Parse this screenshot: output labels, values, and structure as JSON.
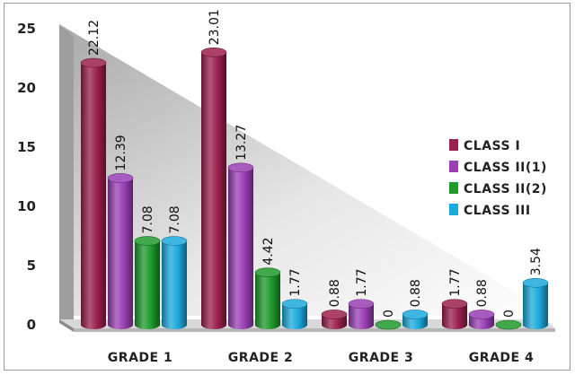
{
  "chart_data": {
    "type": "bar",
    "title": "",
    "xlabel": "",
    "ylabel": "",
    "categories": [
      "GRADE 1",
      "GRADE 2",
      "GRADE 3",
      "GRADE 4"
    ],
    "series": [
      {
        "name": "CLASS I",
        "color": "#9b1f4f",
        "values": [
          22.12,
          23.01,
          0.88,
          1.77
        ]
      },
      {
        "name": "CLASS II(1)",
        "color": "#9a3fb4",
        "values": [
          12.39,
          13.27,
          1.77,
          0.88
        ]
      },
      {
        "name": "CLASS II(2)",
        "color": "#1f9a2c",
        "values": [
          7.08,
          4.42,
          0,
          0
        ]
      },
      {
        "name": "CLASS III",
        "color": "#1ca9dc",
        "values": [
          7.08,
          1.77,
          0.88,
          3.54
        ]
      }
    ],
    "data_labels": [
      [
        "22.12",
        "23.01",
        "0.88",
        "1.77"
      ],
      [
        "12.39",
        "13.27",
        "1.77",
        "0.88"
      ],
      [
        "7.08",
        "4.42",
        "0",
        "0"
      ],
      [
        "7.08",
        "1.77",
        "0.88",
        "3.54"
      ]
    ],
    "ylim": [
      0,
      25
    ],
    "yticks": [
      "0",
      "5",
      "10",
      "15",
      "20",
      "25"
    ],
    "grid": false,
    "legend": "right",
    "style": "3d-cylinder"
  }
}
